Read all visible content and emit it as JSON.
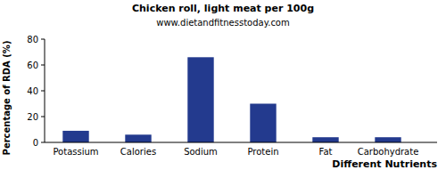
{
  "chart_data": {
    "type": "bar",
    "title": "Chicken roll, light meat per 100g",
    "subtitle": "www.dietandfitnesstoday.com",
    "x_label": "Different Nutrients",
    "y_label": "Percentage of RDA (%)",
    "categories": [
      "Potassium",
      "Calories",
      "Sodium",
      "Protein",
      "Fat",
      "Carbohydrate"
    ],
    "values": [
      9,
      6,
      66,
      30,
      4,
      4
    ],
    "color": "#233a8e",
    "ylim": [
      0,
      80
    ],
    "yticks": [
      0,
      20,
      40,
      60,
      80
    ],
    "grid": false
  }
}
